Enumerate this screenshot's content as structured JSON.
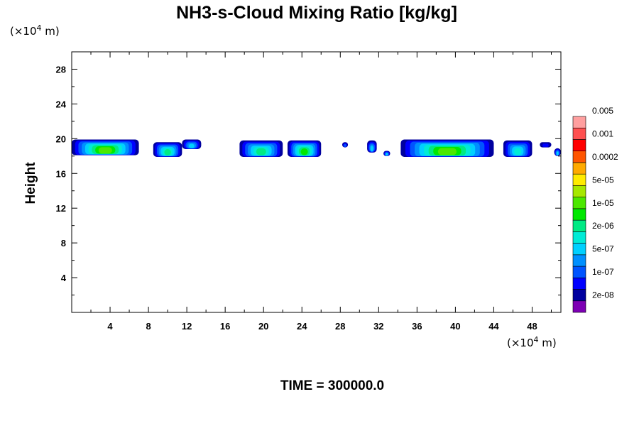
{
  "chart_data": {
    "type": "heatmap",
    "title": "NH3-s-Cloud Mixing Ratio [kg/kg]",
    "ylabel": "Height",
    "x_unit": "(×10",
    "y_unit": "(×10",
    "unit_exponent": "4",
    "unit_suffix": " m)",
    "xlim": [
      0,
      51
    ],
    "ylim": [
      0,
      30
    ],
    "x_ticks": [
      4,
      8,
      12,
      16,
      20,
      24,
      28,
      32,
      36,
      40,
      44,
      48
    ],
    "x_tick_labels": [
      "4",
      "8",
      "12",
      "16",
      "20",
      "24",
      "28",
      "32",
      "36",
      "40",
      "44",
      "48"
    ],
    "y_ticks": [
      4,
      8,
      12,
      16,
      20,
      24,
      28
    ],
    "y_tick_labels": [
      "4",
      "8",
      "12",
      "16",
      "20",
      "24",
      "28"
    ],
    "time_label": "TIME = 300000.0",
    "colorbar": {
      "colors": [
        "#7d00b4",
        "#00009f",
        "#0000ff",
        "#0054ff",
        "#0090ff",
        "#00d0ff",
        "#00ebd6",
        "#00ea84",
        "#00e800",
        "#4ce800",
        "#a6e800",
        "#ffeb00",
        "#ffaa00",
        "#ff5500",
        "#ff0000",
        "#ff5050",
        "#ff9f9f"
      ],
      "labels": [
        "2e-08",
        "1e-07",
        "5e-07",
        "2e-06",
        "1e-05",
        "5e-05",
        "0.0002",
        "0.001",
        "0.005"
      ]
    },
    "cloud_regions": [
      {
        "x0": 0.0,
        "x1": 7.0,
        "y0": 18.1,
        "y1": 19.9,
        "max_level": 8
      },
      {
        "x0": 8.5,
        "x1": 11.5,
        "y0": 17.9,
        "y1": 19.6,
        "max_level": 6
      },
      {
        "x0": 11.5,
        "x1": 13.5,
        "y0": 18.8,
        "y1": 19.9,
        "max_level": 4
      },
      {
        "x0": 17.5,
        "x1": 22.0,
        "y0": 17.9,
        "y1": 19.8,
        "max_level": 6
      },
      {
        "x0": 22.5,
        "x1": 26.0,
        "y0": 17.9,
        "y1": 19.8,
        "max_level": 7
      },
      {
        "x0": 28.2,
        "x1": 28.8,
        "y0": 19.0,
        "y1": 19.6,
        "max_level": 2
      },
      {
        "x0": 30.8,
        "x1": 31.8,
        "y0": 18.4,
        "y1": 19.8,
        "max_level": 4
      },
      {
        "x0": 32.5,
        "x1": 33.2,
        "y0": 18.0,
        "y1": 18.6,
        "max_level": 4
      },
      {
        "x0": 34.3,
        "x1": 44.0,
        "y0": 17.9,
        "y1": 19.9,
        "max_level": 8
      },
      {
        "x0": 45.0,
        "x1": 48.0,
        "y0": 17.9,
        "y1": 19.8,
        "max_level": 5
      },
      {
        "x0": 48.8,
        "x1": 50.0,
        "y0": 19.0,
        "y1": 19.6,
        "max_level": 1
      },
      {
        "x0": 50.3,
        "x1": 51.0,
        "y0": 18.0,
        "y1": 18.9,
        "max_level": 4
      }
    ]
  }
}
